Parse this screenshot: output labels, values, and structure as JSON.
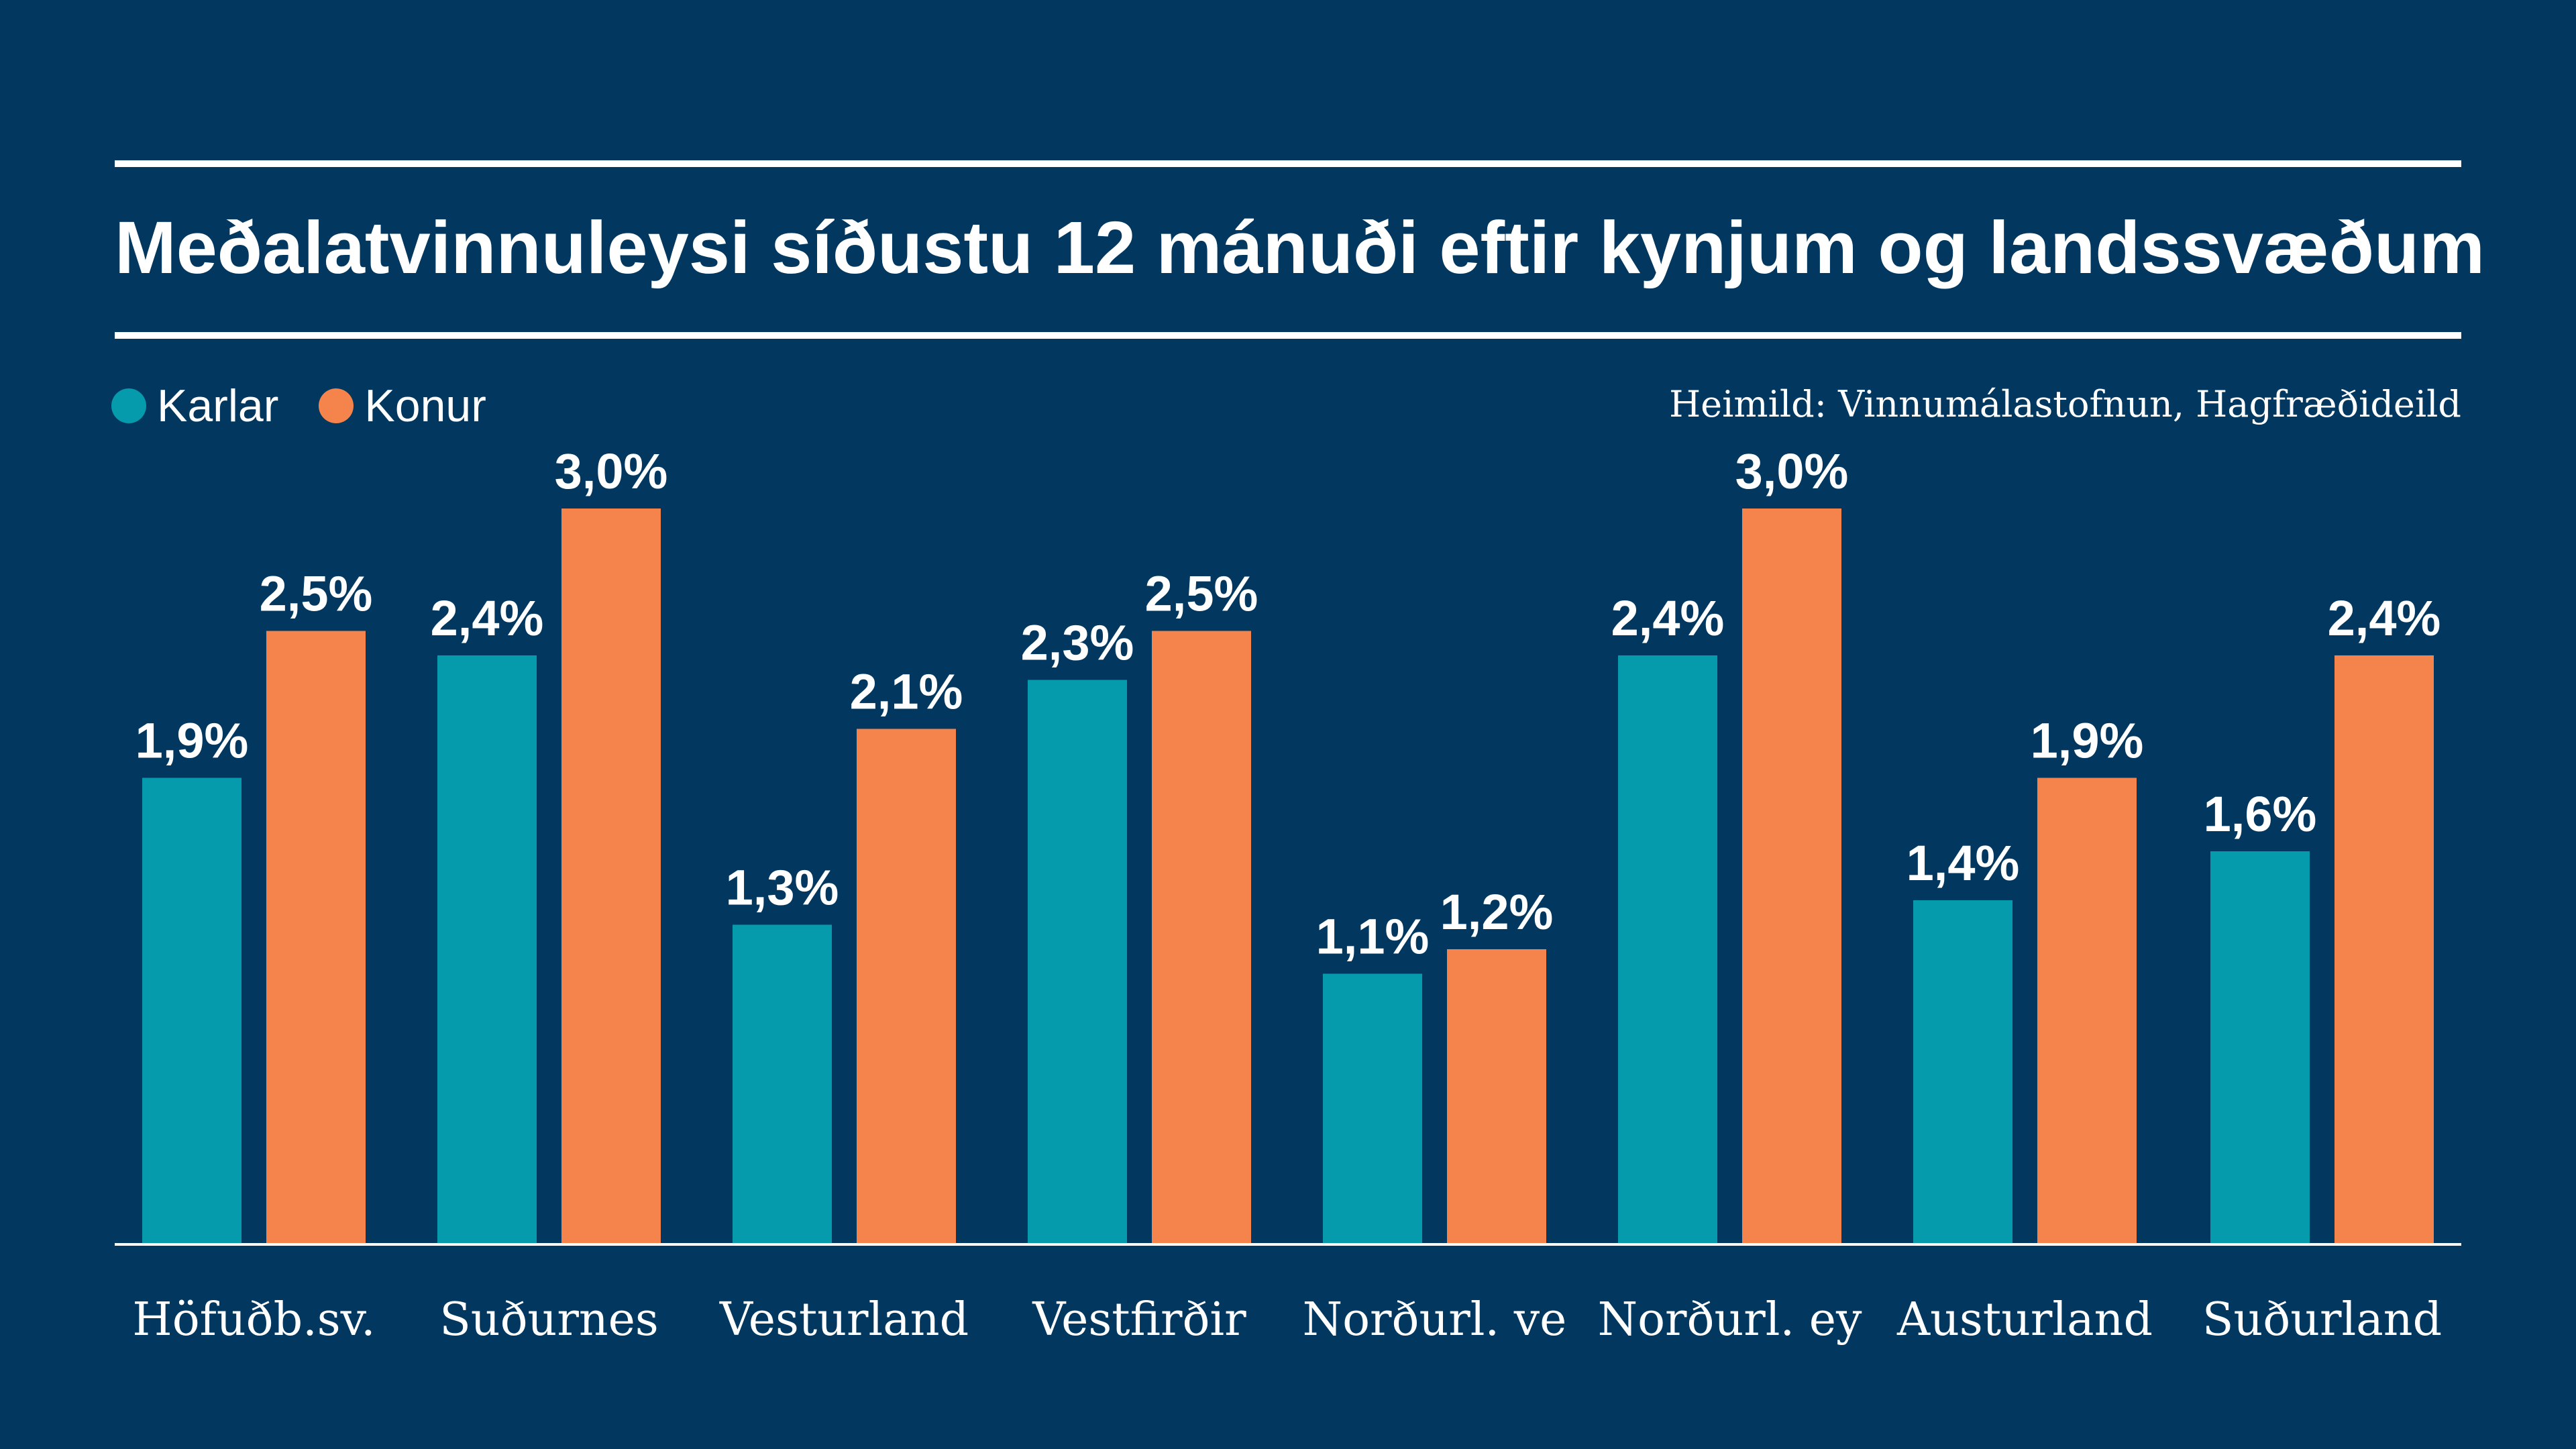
{
  "chart_data": {
    "type": "bar",
    "title": "Meðalatvinnuleysi síðustu 12 mánuði eftir kynjum og landssvæðum",
    "source": "Heimild: Vinnumálastofnun, Hagfræðideild",
    "categories": [
      "Höfuðb.sv.",
      "Suðurnes",
      "Vesturland",
      "Vestfirðir",
      "Norðurl. ve",
      "Norðurl. ey",
      "Austurland",
      "Suðurland"
    ],
    "series": [
      {
        "name": "Karlar",
        "color": "#059AAC",
        "values": [
          1.9,
          2.4,
          1.3,
          2.3,
          1.1,
          2.4,
          1.4,
          1.6
        ],
        "labels": [
          "1,9%",
          "2,4%",
          "1,3%",
          "2,3%",
          "1,1%",
          "2,4%",
          "1,4%",
          "1,6%"
        ]
      },
      {
        "name": "Konur",
        "color": "#F4844C",
        "values": [
          2.5,
          3.0,
          2.1,
          2.5,
          1.2,
          3.0,
          1.9,
          2.4
        ],
        "labels": [
          "2,5%",
          "3,0%",
          "2,1%",
          "2,5%",
          "1,2%",
          "3,0%",
          "1,9%",
          "2,4%"
        ]
      }
    ],
    "ylim": [
      0,
      3.0
    ],
    "xlabel": "",
    "ylabel": "",
    "legend_position": "top-left",
    "grid": false
  },
  "colors": {
    "background": "#023860",
    "text": "#FFFFFF",
    "axis": "#FFFFFF"
  }
}
